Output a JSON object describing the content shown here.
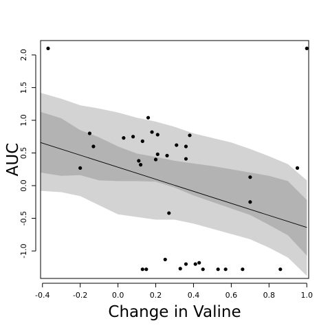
{
  "chart_data": {
    "type": "scatter",
    "title": "",
    "xlabel": "Change in Valine",
    "ylabel": "AUC",
    "xlim": [
      -0.41,
      1.01
    ],
    "ylim": [
      -1.42,
      2.22
    ],
    "x_ticks": [
      -0.4,
      -0.2,
      0.0,
      0.2,
      0.4,
      0.6,
      0.8,
      1.0
    ],
    "x_tick_labels": [
      "-0.4",
      "-0.2",
      "0.0",
      "0.2",
      "0.4",
      "0.6",
      "0.8",
      "1.0"
    ],
    "y_ticks": [
      -1.0,
      -0.5,
      0.0,
      0.5,
      1.0,
      1.5,
      2.0
    ],
    "y_tick_labels": [
      "-1.0",
      "-0.5",
      "0.0",
      "0.5",
      "1.0",
      "1.5",
      "2.0"
    ],
    "grid": false,
    "legend": "none",
    "colors": {
      "points": "#000000",
      "fit_line": "#000000",
      "outer_band": "#d3d3d3",
      "inner_band": "#b3b3b3"
    },
    "fit_line": {
      "x": [
        -0.41,
        1.0
      ],
      "y": [
        0.66,
        -0.64
      ]
    },
    "outer_band": {
      "x": [
        -0.41,
        -0.3,
        -0.2,
        -0.1,
        0.0,
        0.1,
        0.2,
        0.3,
        0.4,
        0.5,
        0.6,
        0.7,
        0.8,
        0.9,
        1.0
      ],
      "upper": [
        1.42,
        1.33,
        1.23,
        1.18,
        1.12,
        1.04,
        0.98,
        0.9,
        0.8,
        0.73,
        0.66,
        0.56,
        0.45,
        0.33,
        0.08
      ],
      "lower": [
        -0.08,
        -0.1,
        -0.16,
        -0.3,
        -0.44,
        -0.48,
        -0.52,
        -0.52,
        -0.58,
        -0.66,
        -0.74,
        -0.82,
        -0.95,
        -1.1,
        -1.38
      ]
    },
    "inner_band": {
      "x": [
        -0.41,
        -0.3,
        -0.2,
        -0.1,
        0.0,
        0.1,
        0.2,
        0.3,
        0.4,
        0.5,
        0.6,
        0.7,
        0.8,
        0.9,
        1.0
      ],
      "upper": [
        1.13,
        1.03,
        0.85,
        0.74,
        0.6,
        0.49,
        0.44,
        0.38,
        0.34,
        0.3,
        0.25,
        0.2,
        0.15,
        0.07,
        -0.22
      ],
      "lower": [
        0.2,
        0.15,
        0.16,
        0.08,
        0.07,
        0.07,
        0.06,
        -0.03,
        -0.15,
        -0.25,
        -0.35,
        -0.45,
        -0.6,
        -0.76,
        -1.07
      ]
    },
    "points": [
      {
        "x": -0.37,
        "y": 2.1
      },
      {
        "x": 1.0,
        "y": 2.1
      },
      {
        "x": -0.2,
        "y": 0.27
      },
      {
        "x": -0.15,
        "y": 0.8
      },
      {
        "x": -0.13,
        "y": 0.6
      },
      {
        "x": 0.03,
        "y": 0.73
      },
      {
        "x": 0.08,
        "y": 0.75
      },
      {
        "x": 0.11,
        "y": 0.38
      },
      {
        "x": 0.12,
        "y": 0.32
      },
      {
        "x": 0.13,
        "y": 0.68
      },
      {
        "x": 0.16,
        "y": 1.04
      },
      {
        "x": 0.18,
        "y": 0.82
      },
      {
        "x": 0.2,
        "y": 0.4
      },
      {
        "x": 0.21,
        "y": 0.48
      },
      {
        "x": 0.21,
        "y": 0.78
      },
      {
        "x": 0.26,
        "y": 0.46
      },
      {
        "x": 0.27,
        "y": -0.42
      },
      {
        "x": 0.31,
        "y": 0.62
      },
      {
        "x": 0.36,
        "y": 0.6
      },
      {
        "x": 0.36,
        "y": 0.41
      },
      {
        "x": 0.38,
        "y": 0.77
      },
      {
        "x": 0.7,
        "y": 0.13
      },
      {
        "x": 0.7,
        "y": -0.25
      },
      {
        "x": 0.95,
        "y": 0.27
      },
      {
        "x": 0.13,
        "y": -1.28
      },
      {
        "x": 0.15,
        "y": -1.28
      },
      {
        "x": 0.25,
        "y": -1.13
      },
      {
        "x": 0.33,
        "y": -1.27
      },
      {
        "x": 0.36,
        "y": -1.2
      },
      {
        "x": 0.41,
        "y": -1.2
      },
      {
        "x": 0.43,
        "y": -1.18
      },
      {
        "x": 0.45,
        "y": -1.28
      },
      {
        "x": 0.53,
        "y": -1.28
      },
      {
        "x": 0.57,
        "y": -1.28
      },
      {
        "x": 0.66,
        "y": -1.28
      },
      {
        "x": 0.86,
        "y": -1.28
      }
    ]
  }
}
